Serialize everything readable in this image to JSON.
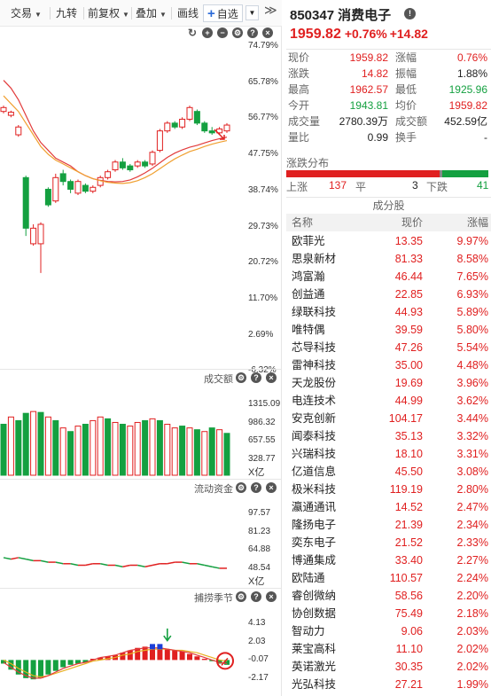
{
  "toolbar": {
    "trade": "交易",
    "nine_turn": "九转",
    "adjust": "前复权",
    "overlay": "叠加",
    "draw": "画线",
    "watchlist": "自选",
    "more": "≫"
  },
  "price_chart": {
    "y_ticks": [
      "74.79%",
      "65.78%",
      "56.77%",
      "47.75%",
      "38.74%",
      "29.73%",
      "20.72%",
      "11.70%",
      "2.69%",
      "-6.32%"
    ],
    "candles": [
      {
        "o": 58.0,
        "c": 59.0,
        "h": 59.5,
        "l": 57.5
      },
      {
        "o": 57.0,
        "c": 57.8,
        "h": 58.2,
        "l": 56.5
      },
      {
        "o": 52.0,
        "c": 54.0,
        "h": 54.5,
        "l": 51.5
      },
      {
        "o": 41.0,
        "c": 28.0,
        "h": 41.5,
        "l": 26.0
      },
      {
        "o": 24.0,
        "c": 28.0,
        "h": 29.0,
        "l": 23.5
      },
      {
        "o": 24.0,
        "c": 29.0,
        "h": 29.5,
        "l": 16.5
      },
      {
        "o": 38.0,
        "c": 34.0,
        "h": 38.5,
        "l": 33.5
      },
      {
        "o": 35.0,
        "c": 41.0,
        "h": 42.0,
        "l": 34.5
      },
      {
        "o": 42.0,
        "c": 40.0,
        "h": 43.0,
        "l": 39.0
      },
      {
        "o": 40.0,
        "c": 38.0,
        "h": 40.5,
        "l": 37.0
      },
      {
        "o": 37.0,
        "c": 40.0,
        "h": 40.5,
        "l": 36.5
      },
      {
        "o": 39.0,
        "c": 37.5,
        "h": 39.5,
        "l": 37.0
      },
      {
        "o": 37.5,
        "c": 38.5,
        "h": 39.0,
        "l": 37.0
      },
      {
        "o": 39.0,
        "c": 41.0,
        "h": 41.5,
        "l": 38.5
      },
      {
        "o": 41.0,
        "c": 42.5,
        "h": 43.0,
        "l": 40.5
      },
      {
        "o": 43.0,
        "c": 45.0,
        "h": 45.5,
        "l": 42.5
      },
      {
        "o": 45.0,
        "c": 43.5,
        "h": 46.0,
        "l": 43.0
      },
      {
        "o": 44.0,
        "c": 43.0,
        "h": 44.5,
        "l": 42.5
      },
      {
        "o": 44.0,
        "c": 45.0,
        "h": 45.5,
        "l": 43.5
      },
      {
        "o": 45.0,
        "c": 44.0,
        "h": 45.5,
        "l": 43.5
      },
      {
        "o": 44.5,
        "c": 47.5,
        "h": 48.0,
        "l": 44.0
      },
      {
        "o": 48.0,
        "c": 53.0,
        "h": 53.5,
        "l": 47.5
      },
      {
        "o": 53.0,
        "c": 55.0,
        "h": 55.5,
        "l": 52.5
      },
      {
        "o": 55.0,
        "c": 54.0,
        "h": 55.5,
        "l": 53.5
      },
      {
        "o": 54.0,
        "c": 56.0,
        "h": 56.5,
        "l": 53.5
      },
      {
        "o": 56.0,
        "c": 59.0,
        "h": 59.5,
        "l": 55.5
      },
      {
        "o": 58.0,
        "c": 55.0,
        "h": 58.5,
        "l": 54.5
      },
      {
        "o": 55.0,
        "c": 53.0,
        "h": 55.5,
        "l": 52.5
      },
      {
        "o": 53.0,
        "c": 52.5,
        "h": 54.0,
        "l": 52.0
      },
      {
        "o": 52.5,
        "c": 53.5,
        "h": 54.0,
        "l": 52.0
      },
      {
        "o": 53.0,
        "c": 54.5,
        "h": 55.0,
        "l": 52.5
      }
    ],
    "ma_orange": [
      62,
      60,
      58,
      55,
      52,
      49,
      47,
      45.5,
      44.5,
      43.5,
      42.5,
      41.5,
      40.7,
      40.2,
      39.8,
      39.6,
      39.5,
      39.7,
      40.2,
      41.0,
      42.0,
      43.3,
      44.6,
      45.8,
      46.8,
      47.7,
      48.3,
      49.0,
      49.6,
      50.1,
      50.5
    ],
    "ma_red": [
      66,
      64,
      61,
      57,
      53,
      50,
      48,
      46,
      45,
      44,
      42.5,
      41.5,
      40.7,
      40.3,
      40.0,
      39.9,
      40.0,
      40.4,
      41.2,
      42.2,
      43.4,
      44.8,
      46.2,
      47.3,
      48.1,
      48.8,
      49.3,
      49.9,
      50.5,
      51.0,
      51.4
    ],
    "y_top": 74.79,
    "y_bottom": -6.32
  },
  "volume": {
    "title": "成交额",
    "unit": "X亿",
    "ticks": [
      "1315.09",
      "986.32",
      "657.55",
      "328.77"
    ],
    "bars": [
      {
        "v": 560,
        "up": false
      },
      {
        "v": 640,
        "up": true
      },
      {
        "v": 600,
        "up": false
      },
      {
        "v": 680,
        "up": false
      },
      {
        "v": 700,
        "up": true
      },
      {
        "v": 690,
        "up": false
      },
      {
        "v": 640,
        "up": true
      },
      {
        "v": 600,
        "up": false
      },
      {
        "v": 520,
        "up": true
      },
      {
        "v": 480,
        "up": false
      },
      {
        "v": 540,
        "up": true
      },
      {
        "v": 560,
        "up": false
      },
      {
        "v": 600,
        "up": true
      },
      {
        "v": 640,
        "up": true
      },
      {
        "v": 620,
        "up": false
      },
      {
        "v": 580,
        "up": true
      },
      {
        "v": 560,
        "up": false
      },
      {
        "v": 540,
        "up": true
      },
      {
        "v": 580,
        "up": true
      },
      {
        "v": 600,
        "up": false
      },
      {
        "v": 620,
        "up": true
      },
      {
        "v": 600,
        "up": false
      },
      {
        "v": 560,
        "up": true
      },
      {
        "v": 520,
        "up": true
      },
      {
        "v": 540,
        "up": false
      },
      {
        "v": 520,
        "up": true
      },
      {
        "v": 500,
        "up": false
      },
      {
        "v": 480,
        "up": true
      },
      {
        "v": 520,
        "up": false
      },
      {
        "v": 500,
        "up": true
      },
      {
        "v": 460,
        "up": false
      }
    ],
    "max": 1315.09
  },
  "flow": {
    "title": "流动资金",
    "unit": "X亿",
    "ticks": [
      "97.57",
      "81.23",
      "64.88",
      "48.54"
    ],
    "series": [
      62,
      61,
      62,
      61,
      60,
      60,
      59,
      59,
      58,
      58,
      57,
      57,
      58,
      58,
      57,
      57,
      56,
      57,
      57,
      56,
      57,
      58,
      58,
      59,
      59,
      58,
      58,
      57,
      56,
      55,
      55
    ],
    "min": 48.54,
    "max": 97.57
  },
  "season": {
    "title": "捕捞季节",
    "ticks": [
      "4.13",
      "2.03",
      "-0.07",
      "-2.17"
    ],
    "hist": [
      -0.3,
      -0.8,
      -1.2,
      -1.5,
      -1.6,
      -1.5,
      -1.2,
      -0.9,
      -0.6,
      -0.4,
      -0.3,
      -0.2,
      0.1,
      0.2,
      0.3,
      0.4,
      0.6,
      0.8,
      1.0,
      1.1,
      1.1,
      1.0,
      0.9,
      0.8,
      0.7,
      0.5,
      0.3,
      0.1,
      -0.1,
      -0.3,
      -0.4
    ],
    "line_red": [
      -0.2,
      -0.6,
      -1.0,
      -1.3,
      -1.5,
      -1.5,
      -1.3,
      -1.0,
      -0.7,
      -0.5,
      -0.3,
      -0.2,
      0.0,
      0.2,
      0.3,
      0.4,
      0.6,
      0.8,
      0.9,
      1.0,
      1.0,
      1.0,
      0.9,
      0.8,
      0.7,
      0.6,
      0.4,
      0.2,
      0.0,
      -0.2,
      -0.3
    ],
    "line_yellow": [
      0.0,
      -0.3,
      -0.7,
      -1.0,
      -1.3,
      -1.4,
      -1.3,
      -1.1,
      -0.9,
      -0.7,
      -0.5,
      -0.3,
      -0.1,
      0.0,
      0.1,
      0.2,
      0.4,
      0.5,
      0.7,
      0.8,
      0.9,
      0.9,
      0.9,
      0.8,
      0.8,
      0.7,
      0.6,
      0.4,
      0.2,
      0.0,
      -0.1
    ],
    "min": -2.17,
    "max": 4.13
  },
  "stock": {
    "code": "850347",
    "name": "消费电子",
    "price": "1959.82",
    "change_pct": "+0.76%",
    "change": "+14.82"
  },
  "quote": [
    {
      "k1": "现价",
      "v1": "1959.82",
      "c1": "red",
      "k2": "涨幅",
      "v2": "0.76%",
      "c2": "red"
    },
    {
      "k1": "涨跌",
      "v1": "14.82",
      "c1": "red",
      "k2": "振幅",
      "v2": "1.88%",
      "c2": "dark"
    },
    {
      "k1": "最高",
      "v1": "1962.57",
      "c1": "red",
      "k2": "最低",
      "v2": "1925.96",
      "c2": "green"
    },
    {
      "k1": "今开",
      "v1": "1943.81",
      "c1": "green",
      "k2": "均价",
      "v2": "1959.82",
      "c2": "red"
    },
    {
      "k1": "成交量",
      "v1": "2780.39万",
      "c1": "dark",
      "k2": "成交额",
      "v2": "452.59亿",
      "c2": "dark"
    },
    {
      "k1": "量比",
      "v1": "0.99",
      "c1": "dark",
      "k2": "换手",
      "v2": "-",
      "c2": "dark"
    }
  ],
  "distribution": {
    "title": "涨跌分布",
    "up_label": "上涨",
    "up": "137",
    "flat_label": "平",
    "flat": "3",
    "down_label": "下跌",
    "down": "41",
    "up_frac": 0.757,
    "flat_frac": 0.017,
    "down_frac": 0.226
  },
  "constituents": {
    "title": "成分股",
    "col_name": "名称",
    "col_price": "现价",
    "col_change": "涨幅",
    "rows": [
      {
        "name": "欧菲光",
        "price": "13.35",
        "change": "9.97%"
      },
      {
        "name": "思泉新材",
        "price": "81.33",
        "change": "8.58%"
      },
      {
        "name": "鸿富瀚",
        "price": "46.44",
        "change": "7.65%"
      },
      {
        "name": "创益通",
        "price": "22.85",
        "change": "6.93%"
      },
      {
        "name": "绿联科技",
        "price": "44.93",
        "change": "5.89%"
      },
      {
        "name": "唯特偶",
        "price": "39.59",
        "change": "5.80%"
      },
      {
        "name": "芯导科技",
        "price": "47.26",
        "change": "5.54%"
      },
      {
        "name": "雷神科技",
        "price": "35.00",
        "change": "4.48%"
      },
      {
        "name": "天龙股份",
        "price": "19.69",
        "change": "3.96%"
      },
      {
        "name": "电连技术",
        "price": "44.99",
        "change": "3.62%"
      },
      {
        "name": "安克创新",
        "price": "104.17",
        "change": "3.44%"
      },
      {
        "name": "闻泰科技",
        "price": "35.13",
        "change": "3.32%"
      },
      {
        "name": "兴瑞科技",
        "price": "18.10",
        "change": "3.31%"
      },
      {
        "name": "亿道信息",
        "price": "45.50",
        "change": "3.08%"
      },
      {
        "name": "极米科技",
        "price": "119.19",
        "change": "2.80%"
      },
      {
        "name": "瀛通通讯",
        "price": "14.52",
        "change": "2.47%"
      },
      {
        "name": "隆扬电子",
        "price": "21.39",
        "change": "2.34%"
      },
      {
        "name": "奕东电子",
        "price": "21.52",
        "change": "2.33%"
      },
      {
        "name": "博通集成",
        "price": "33.40",
        "change": "2.27%"
      },
      {
        "name": "欧陆通",
        "price": "110.57",
        "change": "2.24%"
      },
      {
        "name": "睿创微纳",
        "price": "58.56",
        "change": "2.20%"
      },
      {
        "name": "协创数据",
        "price": "75.49",
        "change": "2.18%"
      },
      {
        "name": "智动力",
        "price": "9.06",
        "change": "2.03%"
      },
      {
        "name": "莱宝高科",
        "price": "11.10",
        "change": "2.02%"
      },
      {
        "name": "英诺激光",
        "price": "30.35",
        "change": "2.02%"
      },
      {
        "name": "光弘科技",
        "price": "27.21",
        "change": "1.99%"
      }
    ]
  },
  "colors": {
    "up": "#e02020",
    "down": "#14a040",
    "ma_orange": "#f0a030",
    "ma_red": "#e23b3b"
  }
}
